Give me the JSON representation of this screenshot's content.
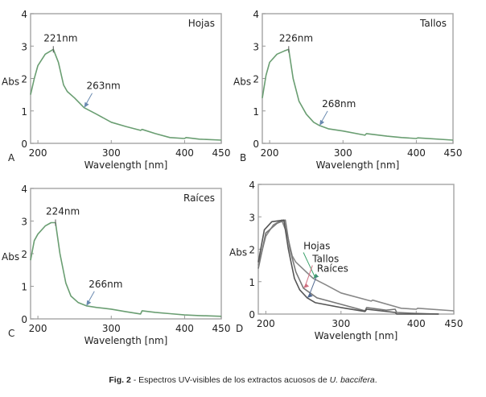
{
  "chart_data": [
    {
      "type": "line",
      "panel_label": "A",
      "legend": "Hojas",
      "xlabel": "Wavelength [nm]",
      "ylabel": "Abs",
      "xlim": [
        190,
        450
      ],
      "ylim": [
        0,
        4
      ],
      "xticks": [
        200,
        300,
        400,
        450
      ],
      "yticks": [
        0,
        1,
        2,
        3,
        4
      ],
      "color": "#6a9e72",
      "annotations": [
        {
          "text": "221nm",
          "x": 221,
          "y": 2.9,
          "type": "peak"
        },
        {
          "text": "263nm",
          "x": 263,
          "y": 1.1,
          "type": "arrow"
        }
      ],
      "series": [
        {
          "x": [
            190,
            195,
            200,
            210,
            221,
            228,
            235,
            240,
            250,
            263,
            280,
            300,
            320,
            340,
            342,
            360,
            380,
            400,
            402,
            420,
            450
          ],
          "y": [
            1.5,
            2.0,
            2.4,
            2.75,
            2.9,
            2.5,
            1.8,
            1.6,
            1.4,
            1.1,
            0.9,
            0.65,
            0.52,
            0.4,
            0.43,
            0.3,
            0.18,
            0.15,
            0.18,
            0.13,
            0.1
          ]
        }
      ]
    },
    {
      "type": "line",
      "panel_label": "B",
      "legend": "Tallos",
      "xlabel": "Wavelength [nm]",
      "ylabel": "Abs",
      "xlim": [
        190,
        450
      ],
      "ylim": [
        0,
        4
      ],
      "xticks": [
        200,
        300,
        400,
        450
      ],
      "yticks": [
        0,
        1,
        2,
        3,
        4
      ],
      "color": "#6a9e72",
      "annotations": [
        {
          "text": "226nm",
          "x": 226,
          "y": 2.9,
          "type": "peak"
        },
        {
          "text": "268nm",
          "x": 268,
          "y": 0.55,
          "type": "arrow"
        }
      ],
      "series": [
        {
          "x": [
            190,
            195,
            200,
            210,
            220,
            226,
            232,
            240,
            250,
            260,
            268,
            280,
            300,
            330,
            332,
            360,
            380,
            400,
            402,
            450
          ],
          "y": [
            1.4,
            2.1,
            2.5,
            2.75,
            2.85,
            2.9,
            2.0,
            1.3,
            0.9,
            0.65,
            0.55,
            0.45,
            0.38,
            0.25,
            0.3,
            0.22,
            0.18,
            0.15,
            0.17,
            0.1
          ]
        }
      ]
    },
    {
      "type": "line",
      "panel_label": "C",
      "legend": "Raíces",
      "xlabel": "Wavelength [nm]",
      "ylabel": "Abs",
      "xlim": [
        190,
        450
      ],
      "ylim": [
        0,
        4
      ],
      "xticks": [
        200,
        300,
        400,
        450
      ],
      "yticks": [
        0,
        1,
        2,
        3,
        4
      ],
      "color": "#6a9e72",
      "annotations": [
        {
          "text": "224nm",
          "x": 224,
          "y": 2.95,
          "type": "peak"
        },
        {
          "text": "266nm",
          "x": 266,
          "y": 0.4,
          "type": "arrow"
        }
      ],
      "series": [
        {
          "x": [
            190,
            195,
            200,
            210,
            218,
            224,
            230,
            238,
            245,
            255,
            266,
            280,
            300,
            320,
            340,
            342,
            360,
            380,
            400,
            420,
            450
          ],
          "y": [
            1.8,
            2.4,
            2.6,
            2.85,
            2.95,
            2.95,
            2.0,
            1.1,
            0.7,
            0.5,
            0.4,
            0.35,
            0.3,
            0.22,
            0.15,
            0.25,
            0.2,
            0.16,
            0.12,
            0.1,
            0.08
          ]
        }
      ]
    },
    {
      "type": "line",
      "panel_label": "D",
      "xlabel": "Wavelength [nm]",
      "ylabel": "Abs",
      "xlim": [
        190,
        450
      ],
      "ylim": [
        0,
        4
      ],
      "xticks": [
        200,
        300,
        400,
        450
      ],
      "yticks": [
        0,
        1,
        2,
        3,
        4
      ],
      "series": [
        {
          "name": "Hojas",
          "color": "#888888",
          "arrow_color": "#3aa06a",
          "x": [
            190,
            200,
            210,
            221,
            228,
            235,
            240,
            263,
            280,
            300,
            340,
            342,
            380,
            400,
            402,
            450
          ],
          "y": [
            1.5,
            2.4,
            2.75,
            2.9,
            2.5,
            1.8,
            1.6,
            1.1,
            0.9,
            0.65,
            0.4,
            0.43,
            0.18,
            0.15,
            0.18,
            0.1
          ]
        },
        {
          "name": "Tallos",
          "color": "#777777",
          "arrow_color": "#d07080",
          "x": [
            190,
            200,
            215,
            226,
            232,
            240,
            250,
            268,
            300,
            332,
            334,
            360,
            372,
            374,
            400,
            430
          ],
          "y": [
            1.4,
            2.5,
            2.8,
            2.9,
            2.0,
            1.3,
            0.8,
            0.5,
            0.3,
            0.1,
            0.2,
            0.12,
            0.15,
            0.05,
            0.02,
            0.0
          ]
        },
        {
          "name": "Raíces",
          "color": "#555555",
          "arrow_color": "#506890",
          "x": [
            190,
            198,
            208,
            218,
            224,
            230,
            238,
            245,
            255,
            266,
            300,
            332,
            334,
            372,
            374,
            400,
            430
          ],
          "y": [
            1.6,
            2.6,
            2.85,
            2.88,
            2.9,
            2.0,
            1.1,
            0.75,
            0.5,
            0.35,
            0.2,
            0.08,
            0.15,
            0.05,
            0.0,
            0.0,
            0.0
          ]
        }
      ]
    }
  ],
  "caption": {
    "label": "Fig. 2",
    "text": " - Espectros UV-visibles de los extractos acuosos de ",
    "species": "U. baccifera",
    "end": "."
  }
}
